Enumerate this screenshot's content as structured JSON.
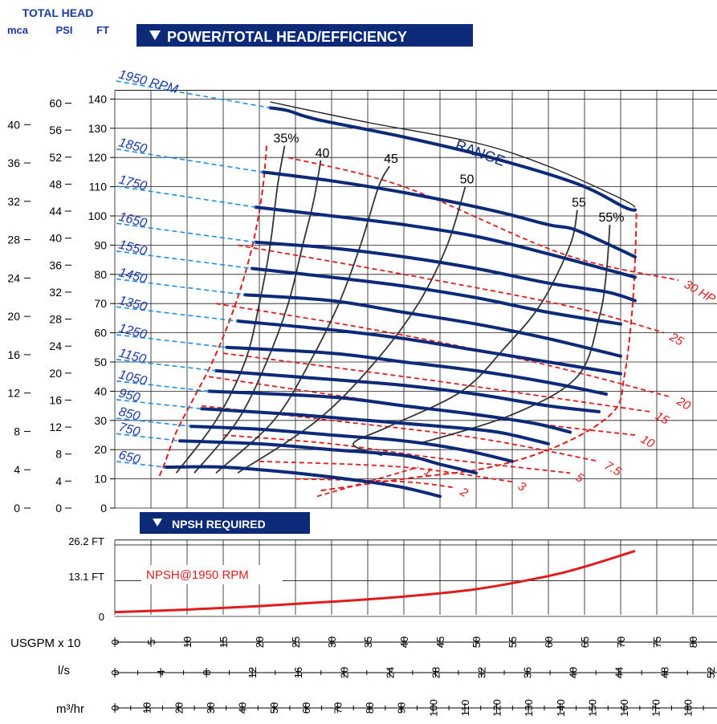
{
  "header": {
    "total_head": "TOTAL HEAD",
    "unit_mca": "mca",
    "unit_psi": "PSI",
    "unit_ft": "FT"
  },
  "main_panel": {
    "title": "POWER/TOTAL HEAD/EFFICIENCY"
  },
  "npsh_panel": {
    "title": "NPSH REQUIRED",
    "y_label_hi": "26.2 FT",
    "y_label_mid": "13.1 FT",
    "y_label_zero": "0",
    "curve_label": "NPSH@1950 RPM"
  },
  "axes": {
    "ft_ticks": [
      "0",
      "10",
      "20",
      "30",
      "40",
      "50",
      "60",
      "70",
      "80",
      "90",
      "100",
      "110",
      "120",
      "130",
      "140"
    ],
    "psi_ticks": [
      "0",
      "4",
      "8",
      "12",
      "16",
      "20",
      "24",
      "28",
      "32",
      "36",
      "40",
      "44",
      "48",
      "52",
      "56",
      "60"
    ],
    "mca_ticks": [
      "0",
      "4",
      "8",
      "12",
      "16",
      "20",
      "24",
      "28",
      "32",
      "36",
      "40"
    ],
    "usgpm_label": "USGPM x 10",
    "usgpm_ticks": [
      "0",
      "5",
      "10",
      "15",
      "20",
      "25",
      "30",
      "35",
      "40",
      "45",
      "50",
      "55",
      "60",
      "65",
      "70",
      "75",
      "80"
    ],
    "ls_label": "l/s",
    "ls_ticks": [
      "0",
      "4",
      "8",
      "12",
      "16",
      "20",
      "24",
      "28",
      "32",
      "36",
      "40",
      "44",
      "48",
      "52"
    ],
    "m3hr_label": "m³/hr",
    "m3hr_ticks": [
      "0",
      "10",
      "20",
      "30",
      "40",
      "50",
      "60",
      "70",
      "80",
      "90",
      "100",
      "110",
      "120",
      "130",
      "140",
      "150",
      "160",
      "170",
      "180",
      "190"
    ]
  },
  "chart_data": {
    "type": "line",
    "title": "POWER/TOTAL HEAD/EFFICIENCY",
    "xlabel": "USGPM x 10",
    "ylabel": "TOTAL HEAD (FT)",
    "xlim": [
      0,
      82
    ],
    "ylim": [
      0,
      140
    ],
    "speed_curves": [
      {
        "name": "1950 RPM",
        "points": [
          [
            21.5,
            137
          ],
          [
            24,
            136
          ],
          [
            28,
            133
          ],
          [
            40,
            127
          ],
          [
            52,
            120
          ],
          [
            64,
            111
          ],
          [
            70.5,
            103
          ],
          [
            72,
            102
          ]
        ]
      },
      {
        "name": "1850",
        "points": [
          [
            20.5,
            115
          ],
          [
            30,
            112
          ],
          [
            40,
            108
          ],
          [
            52,
            102
          ],
          [
            60,
            97
          ],
          [
            64,
            95
          ],
          [
            72,
            86
          ]
        ]
      },
      {
        "name": "1750",
        "points": [
          [
            19.5,
            103
          ],
          [
            30,
            100
          ],
          [
            40,
            97
          ],
          [
            50,
            93
          ],
          [
            60,
            87
          ],
          [
            72,
            79
          ]
        ]
      },
      {
        "name": "1650",
        "points": [
          [
            19.5,
            91
          ],
          [
            30,
            89
          ],
          [
            40,
            86
          ],
          [
            50,
            82
          ],
          [
            60,
            77
          ],
          [
            68,
            74
          ],
          [
            72,
            71
          ]
        ]
      },
      {
        "name": "1550",
        "points": [
          [
            19,
            82
          ],
          [
            30,
            79
          ],
          [
            40,
            76
          ],
          [
            50,
            72
          ],
          [
            60,
            67
          ],
          [
            70,
            63
          ]
        ]
      },
      {
        "name": "1450",
        "points": [
          [
            18,
            73
          ],
          [
            30,
            71
          ],
          [
            40,
            67
          ],
          [
            50,
            63
          ],
          [
            60,
            58
          ],
          [
            70,
            52
          ]
        ]
      },
      {
        "name": "1350",
        "points": [
          [
            17,
            64
          ],
          [
            30,
            61
          ],
          [
            40,
            58
          ],
          [
            50,
            54
          ],
          [
            60,
            50
          ],
          [
            70,
            46
          ]
        ]
      },
      {
        "name": "1250",
        "points": [
          [
            15.5,
            55
          ],
          [
            30,
            53
          ],
          [
            40,
            50
          ],
          [
            50,
            47
          ],
          [
            60,
            43
          ],
          [
            68,
            39
          ]
        ]
      },
      {
        "name": "1150",
        "points": [
          [
            14,
            47
          ],
          [
            30,
            44
          ],
          [
            40,
            42
          ],
          [
            50,
            39
          ],
          [
            60,
            35
          ],
          [
            67,
            33
          ]
        ]
      },
      {
        "name": "1050",
        "points": [
          [
            13,
            40
          ],
          [
            30,
            38
          ],
          [
            40,
            35
          ],
          [
            50,
            32
          ],
          [
            58,
            29
          ],
          [
            63,
            26
          ]
        ]
      },
      {
        "name": "950",
        "points": [
          [
            12,
            34
          ],
          [
            25,
            32
          ],
          [
            35,
            30
          ],
          [
            45,
            28
          ],
          [
            53,
            26
          ],
          [
            60,
            22
          ]
        ]
      },
      {
        "name": "850",
        "points": [
          [
            10.5,
            28
          ],
          [
            20,
            27
          ],
          [
            30,
            25
          ],
          [
            40,
            23
          ],
          [
            48,
            20
          ],
          [
            55,
            16
          ]
        ]
      },
      {
        "name": "750",
        "points": [
          [
            9,
            23
          ],
          [
            20,
            22
          ],
          [
            30,
            20
          ],
          [
            40,
            18
          ],
          [
            45,
            15
          ],
          [
            50,
            12
          ]
        ]
      },
      {
        "name": "650",
        "points": [
          [
            7,
            14
          ],
          [
            15,
            14
          ],
          [
            25,
            12
          ],
          [
            35,
            9
          ],
          [
            40,
            7
          ],
          [
            45,
            4
          ]
        ]
      }
    ],
    "efficiency_curves": [
      {
        "name": "35%",
        "points": [
          [
            8.5,
            12
          ],
          [
            14,
            30
          ],
          [
            18,
            50
          ],
          [
            20,
            70
          ],
          [
            21.5,
            90
          ],
          [
            22.5,
            110
          ],
          [
            23.5,
            124
          ]
        ]
      },
      {
        "name": "40",
        "points": [
          [
            11,
            12
          ],
          [
            17,
            30
          ],
          [
            21,
            50
          ],
          [
            24,
            70
          ],
          [
            26,
            90
          ],
          [
            27.5,
            105
          ],
          [
            28.5,
            119
          ]
        ]
      },
      {
        "name": "45",
        "points": [
          [
            14,
            12
          ],
          [
            22,
            30
          ],
          [
            27,
            50
          ],
          [
            31,
            70
          ],
          [
            34,
            90
          ],
          [
            36.5,
            110
          ],
          [
            38,
            117
          ]
        ]
      },
      {
        "name": "50",
        "points": [
          [
            17,
            12
          ],
          [
            28,
            30
          ],
          [
            36,
            50
          ],
          [
            42,
            70
          ],
          [
            46,
            90
          ],
          [
            48.5,
            110
          ]
        ]
      },
      {
        "name": "55",
        "points": [
          [
            37,
            18
          ],
          [
            33,
            22
          ],
          [
            38,
            28
          ],
          [
            48,
            40
          ],
          [
            54,
            55
          ],
          [
            59,
            70
          ],
          [
            63,
            90
          ],
          [
            64,
            102
          ]
        ]
      },
      {
        "name": "55%",
        "points": [
          [
            42,
            22
          ],
          [
            55,
            32
          ],
          [
            64,
            45
          ],
          [
            67,
            65
          ],
          [
            68,
            80
          ],
          [
            68.5,
            97
          ]
        ]
      }
    ],
    "power_curves": [
      {
        "name": "1",
        "points": [
          [
            28,
            4
          ],
          [
            35,
            9
          ],
          [
            42,
            14
          ]
        ]
      },
      {
        "name": "2",
        "points": [
          [
            25,
            10
          ],
          [
            40,
            9
          ],
          [
            47,
            7
          ]
        ]
      },
      {
        "name": "3",
        "points": [
          [
            20,
            16
          ],
          [
            40,
            14
          ],
          [
            55,
            9
          ]
        ]
      },
      {
        "name": "5",
        "points": [
          [
            15,
            25
          ],
          [
            30,
            22
          ],
          [
            45,
            17
          ],
          [
            63,
            12
          ]
        ]
      },
      {
        "name": "7.5",
        "points": [
          [
            12,
            35
          ],
          [
            30,
            30
          ],
          [
            50,
            24
          ],
          [
            67,
            16
          ]
        ]
      },
      {
        "name": "10",
        "points": [
          [
            13,
            45
          ],
          [
            35,
            37
          ],
          [
            58,
            29
          ],
          [
            72,
            25
          ]
        ]
      },
      {
        "name": "15",
        "points": [
          [
            15,
            53
          ],
          [
            40,
            45
          ],
          [
            60,
            38
          ],
          [
            74,
            33
          ]
        ]
      },
      {
        "name": "20",
        "points": [
          [
            14,
            70
          ],
          [
            36,
            61
          ],
          [
            58,
            50
          ],
          [
            77,
            38
          ]
        ]
      },
      {
        "name": "25",
        "points": [
          [
            17,
            90
          ],
          [
            40,
            80
          ],
          [
            63,
            69
          ],
          [
            76,
            60
          ]
        ]
      },
      {
        "name": "30 HP",
        "points": [
          [
            24,
            120
          ],
          [
            40,
            110
          ],
          [
            62,
            87
          ],
          [
            78,
            78
          ]
        ]
      }
    ],
    "range_label": "RANGE",
    "npsh": {
      "name": "NPSH@1950 RPM",
      "ylim_ft": [
        0,
        26.2
      ],
      "points": [
        [
          0,
          1.6
        ],
        [
          10,
          2.5
        ],
        [
          20,
          3.8
        ],
        [
          30,
          5.4
        ],
        [
          40,
          7.3
        ],
        [
          50,
          10.0
        ],
        [
          60,
          14.8
        ],
        [
          65,
          18.2
        ],
        [
          72,
          24.0
        ]
      ]
    }
  },
  "colors": {
    "navy": "#0c2a78",
    "blue_text": "#1a3aa8",
    "dashed_blue": "#1f8fe6",
    "red": "#e21b1b",
    "grid": "#000000"
  }
}
